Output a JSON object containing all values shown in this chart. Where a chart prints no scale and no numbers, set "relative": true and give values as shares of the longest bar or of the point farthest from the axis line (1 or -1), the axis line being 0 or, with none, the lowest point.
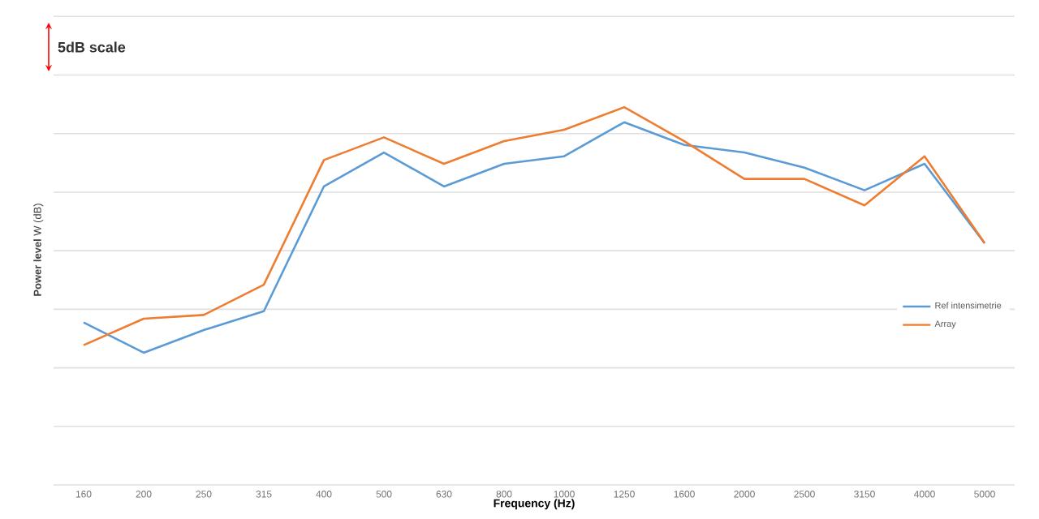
{
  "chart_data": {
    "type": "line",
    "relative": true,
    "xlabel": "Frequency (Hz)",
    "ylabel": "**Power level** W (dB)",
    "annotations": [
      "5dB scale"
    ],
    "categories": [
      "160",
      "200",
      "250",
      "315",
      "400",
      "500",
      "630",
      "800",
      "1000",
      "1250",
      "1600",
      "2000",
      "2500",
      "3150",
      "4000",
      "5000"
    ],
    "series": [
      {
        "name": "Ref intensimetrie",
        "color": "#5b9bd5",
        "values": [
          0.43,
          0.35,
          0.41,
          0.46,
          0.79,
          0.88,
          0.79,
          0.85,
          0.87,
          0.96,
          0.9,
          0.88,
          0.84,
          0.78,
          0.85,
          0.64
        ]
      },
      {
        "name": "Array",
        "color": "#ed7d31",
        "values": [
          0.37,
          0.44,
          0.45,
          0.53,
          0.86,
          0.92,
          0.85,
          0.91,
          0.94,
          1.0,
          0.91,
          0.81,
          0.81,
          0.74,
          0.87,
          0.64
        ]
      }
    ],
    "grid": "y",
    "legend": "right"
  }
}
